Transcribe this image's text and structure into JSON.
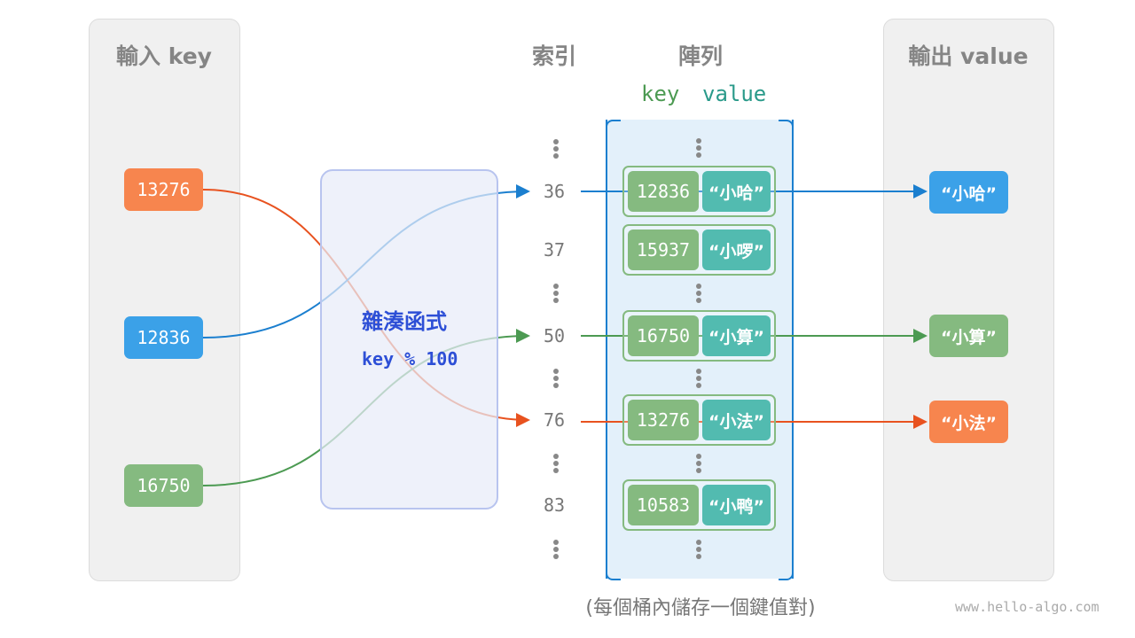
{
  "input_panel": {
    "title": "輸入 key",
    "keys": [
      {
        "value": "13276",
        "color": "#f7854e"
      },
      {
        "value": "12836",
        "color": "#3ba1e8"
      },
      {
        "value": "16750",
        "color": "#85ba80"
      }
    ]
  },
  "hash": {
    "title": "雜湊函式",
    "formula": "key % 100"
  },
  "index_column": {
    "title": "索引",
    "indices": [
      "36",
      "37",
      "50",
      "76",
      "83"
    ]
  },
  "array": {
    "title": "陣列",
    "key_label": "key",
    "value_label": "value",
    "buckets": [
      {
        "key": "12836",
        "value": "“小哈”"
      },
      {
        "key": "15937",
        "value": "“小啰”"
      },
      {
        "key": "16750",
        "value": "“小算”"
      },
      {
        "key": "13276",
        "value": "“小法”"
      },
      {
        "key": "10583",
        "value": "“小鸭”"
      }
    ]
  },
  "output_panel": {
    "title": "輸出 value",
    "values": [
      {
        "value": "“小哈”",
        "color": "#3ba1e8"
      },
      {
        "value": "“小算”",
        "color": "#85ba80"
      },
      {
        "value": "“小法”",
        "color": "#f7854e"
      }
    ]
  },
  "caption": "(每個桶內儲存一個鍵值對)",
  "watermark": "www.hello-algo.com"
}
